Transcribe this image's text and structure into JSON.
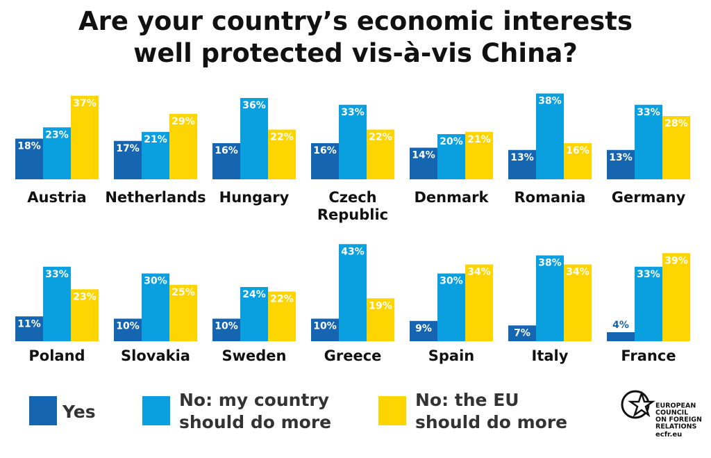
{
  "chart_data": {
    "type": "bar",
    "title": "Are your country’s economic interests well protected vis-à-vis China?",
    "categories": [
      "Austria",
      "Netherlands",
      "Hungary",
      "Czech Republic",
      "Denmark",
      "Romania",
      "Germany",
      "Poland",
      "Slovakia",
      "Sweden",
      "Greece",
      "Spain",
      "Italy",
      "France"
    ],
    "series": [
      {
        "name": "Yes",
        "color": "#1565b0",
        "values": [
          18,
          17,
          16,
          16,
          14,
          13,
          13,
          11,
          10,
          10,
          10,
          9,
          7,
          4
        ],
        "value_labels": [
          "18%",
          "17%",
          "16%",
          "16%",
          "14%",
          "13%",
          "13%",
          "11%",
          "10%",
          "10%",
          "10%",
          "9%",
          "7%",
          "4%"
        ]
      },
      {
        "name": "No: my country should do more",
        "color": "#0aa0e0",
        "values": [
          23,
          21,
          36,
          33,
          20,
          38,
          33,
          33,
          30,
          24,
          43,
          30,
          38,
          33
        ],
        "value_labels": [
          "23%",
          "21%",
          "36%",
          "33%",
          "20%",
          "38%",
          "33%",
          "33%",
          "30%",
          "24%",
          "43%",
          "30%",
          "38%",
          "33%"
        ]
      },
      {
        "name": "No: the EU should do more",
        "color": "#ffd500",
        "values": [
          37,
          29,
          22,
          22,
          21,
          16,
          28,
          23,
          25,
          22,
          19,
          34,
          34,
          39
        ],
        "value_labels": [
          "37%",
          "29%",
          "22%",
          "22%",
          "21%",
          "16%",
          "28%",
          "23%",
          "25%",
          "22%",
          "19%",
          "34%",
          "34%",
          "39%"
        ]
      }
    ]
  },
  "logo": {
    "lines": [
      "EUROPEAN",
      "COUNCIL",
      "ON FOREIGN",
      "RELATIONS"
    ],
    "url": "ecfr.eu"
  }
}
